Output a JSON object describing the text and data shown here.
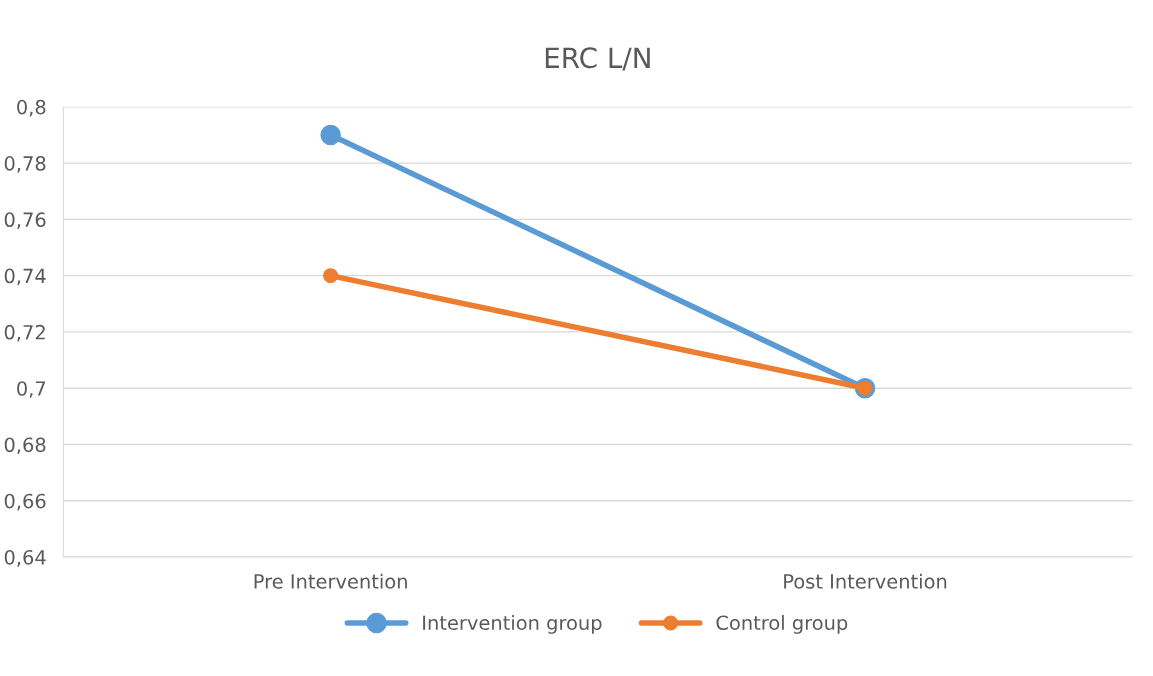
{
  "chart_data": {
    "type": "line",
    "title": "ERC L/N",
    "categories": [
      "Pre Intervention",
      "Post Intervention"
    ],
    "series": [
      {
        "name": "Intervention group",
        "color": "#5b9bd5",
        "values": [
          0.79,
          0.7
        ]
      },
      {
        "name": "Control group",
        "color": "#ed7d31",
        "values": [
          0.74,
          0.7
        ]
      }
    ],
    "ylim": [
      0.64,
      0.8
    ],
    "yticks": [
      {
        "value": 0.64,
        "label": "0,64"
      },
      {
        "value": 0.66,
        "label": "0,66"
      },
      {
        "value": 0.68,
        "label": "0,68"
      },
      {
        "value": 0.7,
        "label": "0,7"
      },
      {
        "value": 0.72,
        "label": "0,72"
      },
      {
        "value": 0.74,
        "label": "0,74"
      },
      {
        "value": 0.76,
        "label": "0,76"
      },
      {
        "value": 0.78,
        "label": "0,78"
      },
      {
        "value": 0.8,
        "label": "0,8"
      }
    ],
    "grid": "y",
    "legend": "bottom",
    "marker": "circle",
    "line_style": "solid"
  }
}
